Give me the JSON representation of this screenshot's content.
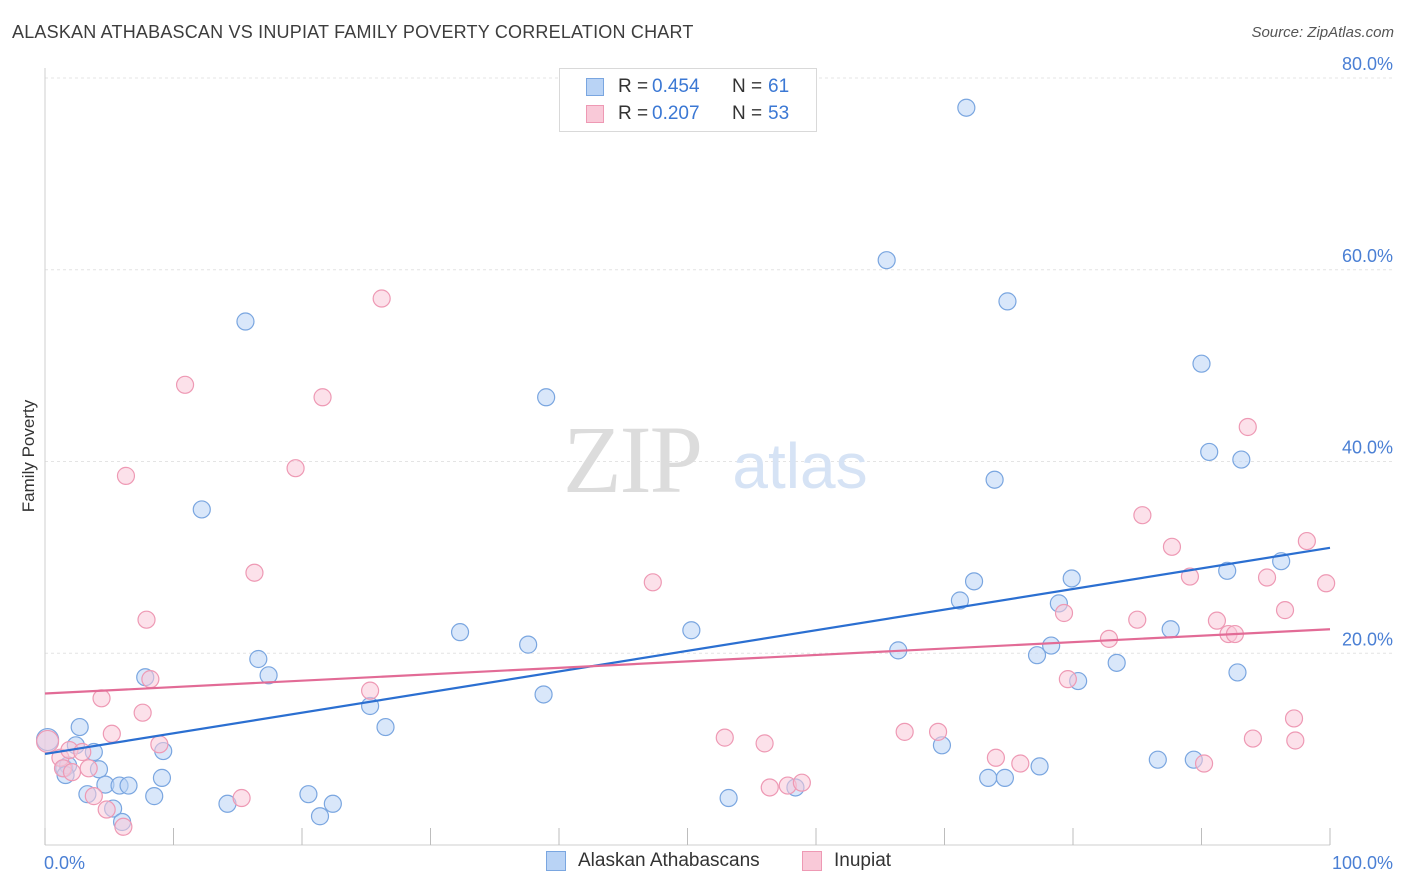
{
  "title": "ALASKAN ATHABASCAN VS INUPIAT FAMILY POVERTY CORRELATION CHART",
  "source": "Source: ZipAtlas.com",
  "watermark": {
    "zip": "ZIP",
    "atlas": "atlas"
  },
  "legend": {
    "r_label": "R =",
    "n_label": "N =",
    "series": [
      {
        "name": "Alaskan Athabascans",
        "r": "0.454",
        "n": "61",
        "fill": "#b9d3f5",
        "stroke": "#7aa6e0",
        "line": "#2b6fd1"
      },
      {
        "name": "Inupiat",
        "r": "0.207",
        "n": "53",
        "fill": "#f9c9d8",
        "stroke": "#ee99b4",
        "line": "#e26b96"
      }
    ]
  },
  "chart_data": {
    "type": "scatter",
    "title": "ALASKAN ATHABASCAN VS INUPIAT FAMILY POVERTY CORRELATION CHART",
    "xlabel": "",
    "ylabel": "Family Poverty",
    "xlim": [
      0,
      100
    ],
    "ylim": [
      0,
      80
    ],
    "x_tick_labels": [
      "0.0%",
      "100.0%"
    ],
    "y_tick_labels": [
      "20.0%",
      "40.0%",
      "60.0%",
      "80.0%"
    ],
    "y_ticks": [
      20,
      40,
      60,
      80
    ],
    "grid": true,
    "series": [
      {
        "name": "Alaskan Athabascans",
        "trend": {
          "x0": 0,
          "y0": 9.5,
          "x1": 100,
          "y1": 31.0
        },
        "points": [
          [
            0.2,
            11.0
          ],
          [
            1.5,
            8.0
          ],
          [
            1.8,
            8.3
          ],
          [
            1.6,
            7.3
          ],
          [
            2.7,
            12.3
          ],
          [
            2.4,
            10.4
          ],
          [
            3.8,
            9.7
          ],
          [
            3.3,
            5.3
          ],
          [
            4.2,
            7.9
          ],
          [
            4.7,
            6.3
          ],
          [
            5.3,
            3.8
          ],
          [
            6.0,
            2.4
          ],
          [
            5.8,
            6.2
          ],
          [
            6.5,
            6.2
          ],
          [
            7.8,
            17.5
          ],
          [
            8.5,
            5.1
          ],
          [
            9.1,
            7.0
          ],
          [
            9.2,
            9.8
          ],
          [
            12.2,
            35.0
          ],
          [
            14.2,
            4.3
          ],
          [
            15.6,
            54.6
          ],
          [
            16.6,
            19.4
          ],
          [
            17.4,
            17.7
          ],
          [
            20.5,
            5.3
          ],
          [
            21.4,
            3.0
          ],
          [
            22.4,
            4.3
          ],
          [
            25.3,
            14.5
          ],
          [
            26.5,
            12.3
          ],
          [
            32.3,
            22.2
          ],
          [
            37.6,
            20.9
          ],
          [
            38.8,
            15.7
          ],
          [
            39.0,
            46.7
          ],
          [
            50.3,
            22.4
          ],
          [
            53.2,
            4.9
          ],
          [
            58.4,
            6.0
          ],
          [
            65.5,
            61.0
          ],
          [
            66.4,
            20.3
          ],
          [
            69.8,
            10.4
          ],
          [
            71.2,
            25.5
          ],
          [
            71.7,
            76.9
          ],
          [
            72.3,
            27.5
          ],
          [
            73.4,
            7.0
          ],
          [
            73.9,
            38.1
          ],
          [
            74.7,
            7.0
          ],
          [
            74.9,
            56.7
          ],
          [
            77.2,
            19.8
          ],
          [
            77.4,
            8.2
          ],
          [
            78.3,
            20.8
          ],
          [
            78.9,
            25.2
          ],
          [
            79.9,
            27.8
          ],
          [
            80.4,
            17.1
          ],
          [
            83.4,
            19.0
          ],
          [
            86.6,
            8.9
          ],
          [
            87.6,
            22.5
          ],
          [
            89.4,
            8.9
          ],
          [
            90.0,
            50.2
          ],
          [
            90.6,
            41.0
          ],
          [
            92.0,
            28.6
          ],
          [
            92.8,
            18.0
          ],
          [
            93.1,
            40.2
          ],
          [
            96.2,
            29.6
          ]
        ]
      },
      {
        "name": "Inupiat",
        "trend": {
          "x0": 0,
          "y0": 15.8,
          "x1": 100,
          "y1": 22.5
        },
        "points": [
          [
            0.2,
            10.8
          ],
          [
            1.2,
            9.1
          ],
          [
            1.4,
            8.0
          ],
          [
            1.9,
            9.9
          ],
          [
            2.1,
            7.6
          ],
          [
            2.9,
            9.7
          ],
          [
            3.4,
            8.0
          ],
          [
            3.8,
            5.1
          ],
          [
            4.4,
            15.3
          ],
          [
            4.8,
            3.7
          ],
          [
            5.2,
            11.6
          ],
          [
            6.1,
            1.9
          ],
          [
            6.3,
            38.5
          ],
          [
            7.6,
            13.8
          ],
          [
            7.9,
            23.5
          ],
          [
            8.2,
            17.3
          ],
          [
            8.9,
            10.5
          ],
          [
            10.9,
            48.0
          ],
          [
            15.3,
            4.9
          ],
          [
            16.3,
            28.4
          ],
          [
            19.5,
            39.3
          ],
          [
            21.6,
            46.7
          ],
          [
            25.3,
            16.1
          ],
          [
            26.2,
            57.0
          ],
          [
            47.3,
            27.4
          ],
          [
            52.9,
            11.2
          ],
          [
            56.0,
            10.6
          ],
          [
            56.4,
            6.0
          ],
          [
            57.8,
            6.2
          ],
          [
            58.9,
            6.5
          ],
          [
            66.9,
            11.8
          ],
          [
            69.5,
            11.8
          ],
          [
            74.0,
            9.1
          ],
          [
            75.9,
            8.5
          ],
          [
            79.3,
            24.2
          ],
          [
            79.6,
            17.3
          ],
          [
            82.8,
            21.5
          ],
          [
            85.0,
            23.5
          ],
          [
            85.4,
            34.4
          ],
          [
            87.7,
            31.1
          ],
          [
            89.1,
            28.0
          ],
          [
            90.2,
            8.5
          ],
          [
            91.2,
            23.4
          ],
          [
            92.1,
            22.0
          ],
          [
            92.6,
            22.0
          ],
          [
            93.6,
            43.6
          ],
          [
            94.0,
            11.1
          ],
          [
            95.1,
            27.9
          ],
          [
            96.5,
            24.5
          ],
          [
            97.2,
            13.2
          ],
          [
            97.3,
            10.9
          ],
          [
            98.2,
            31.7
          ],
          [
            99.7,
            27.3
          ]
        ]
      }
    ]
  }
}
